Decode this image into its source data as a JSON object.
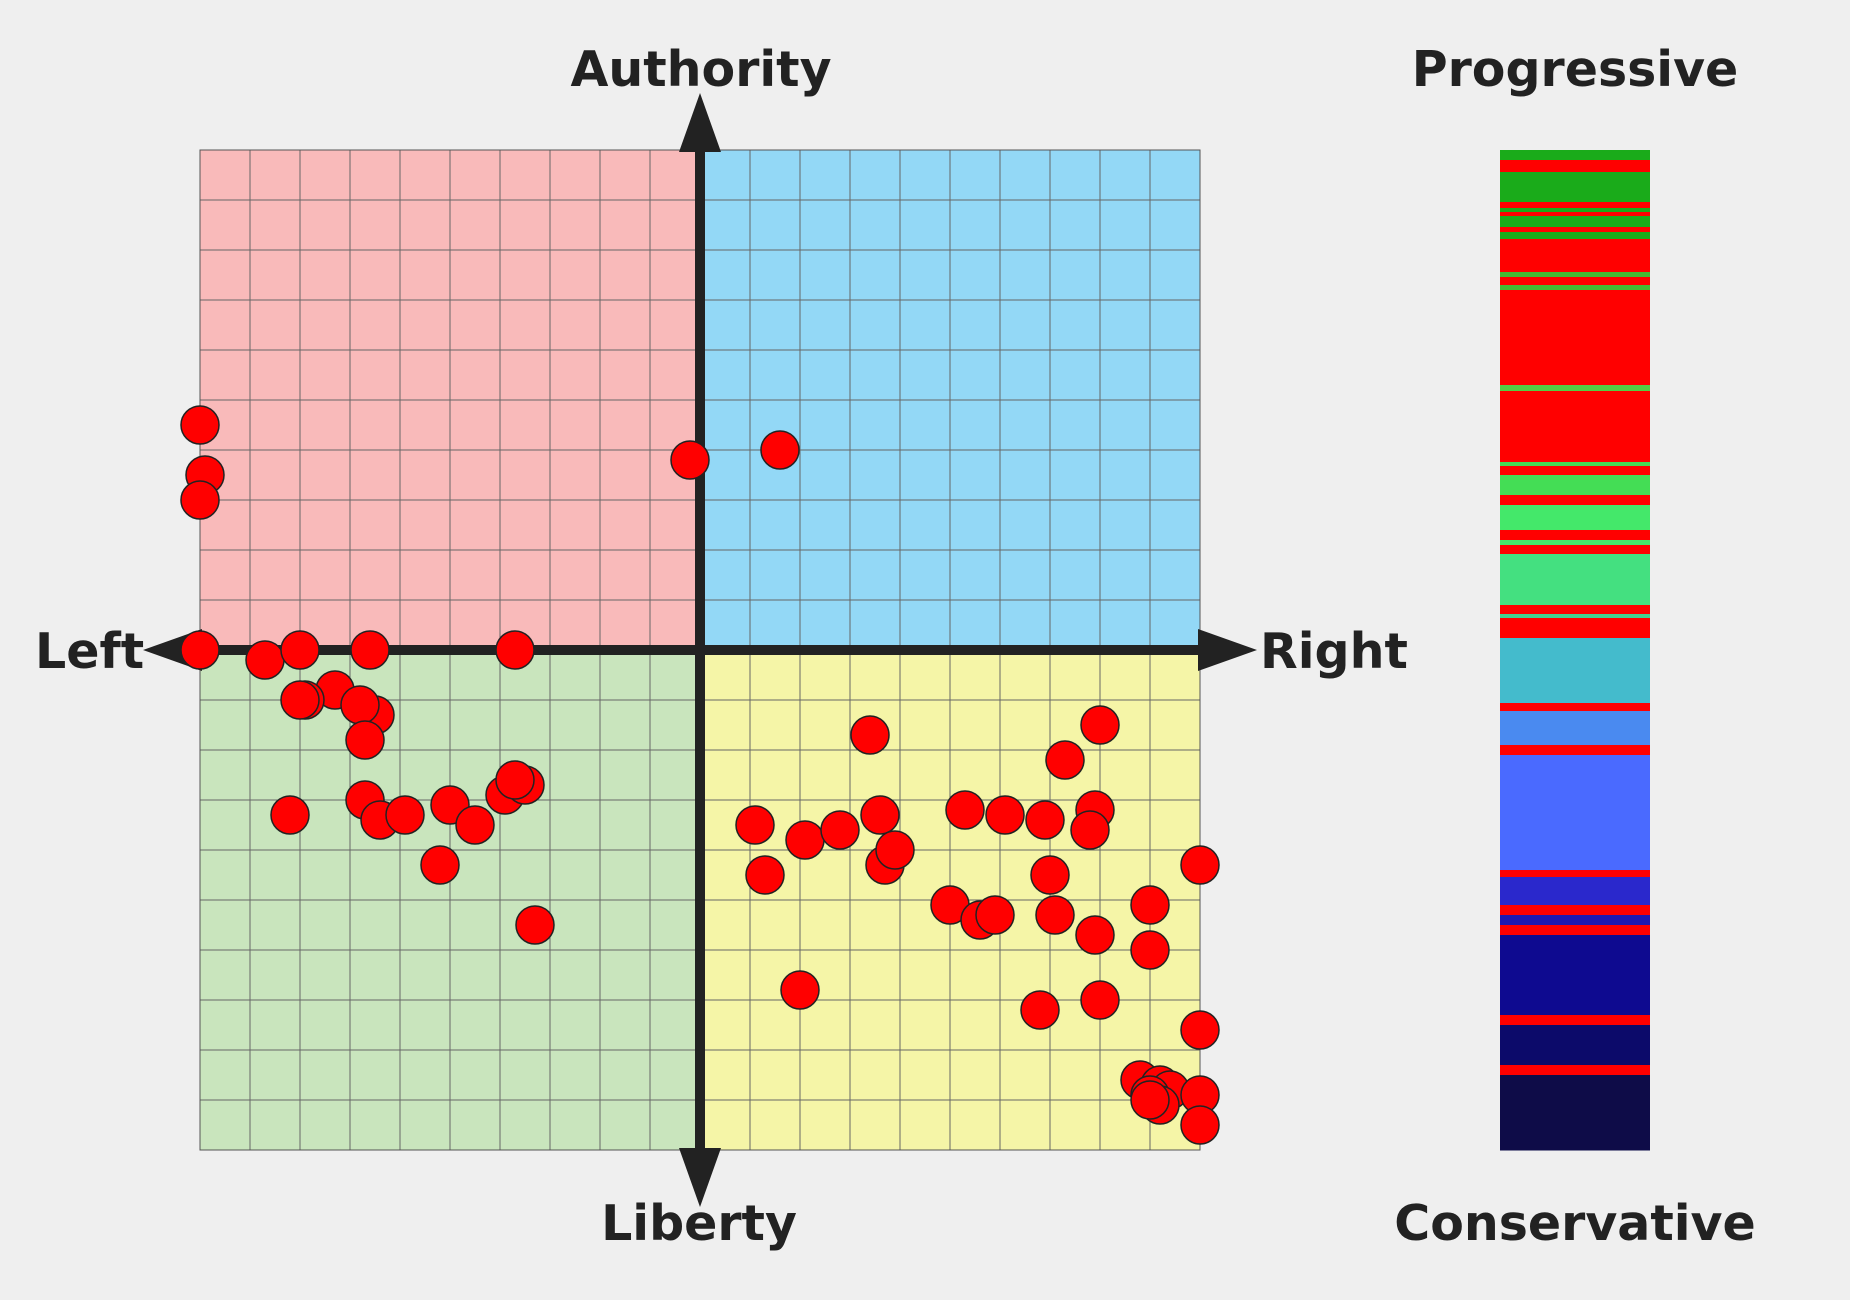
{
  "chart_data": {
    "type": "scatter",
    "axis_labels": {
      "top": "Authority",
      "bottom": "Liberty",
      "left": "Left",
      "right": "Right",
      "bar_top": "Progressive",
      "bar_bottom": "Conservative"
    },
    "xlim": [
      -10,
      10
    ],
    "ylim": [
      -10,
      10
    ],
    "grid": true,
    "quadrant_colors": {
      "top_left": "#f9baba",
      "top_right": "#93d8f6",
      "bottom_left": "#c9e5bd",
      "bottom_right": "#f5f5a7"
    },
    "points": [
      [
        -10.0,
        4.5
      ],
      [
        -9.9,
        3.5
      ],
      [
        -10.0,
        3.0
      ],
      [
        -0.2,
        3.8
      ],
      [
        1.6,
        4.0
      ],
      [
        -10.0,
        0.0
      ],
      [
        -8.7,
        -0.2
      ],
      [
        -8.0,
        0.0
      ],
      [
        -6.6,
        0.0
      ],
      [
        -3.7,
        0.0
      ],
      [
        -7.3,
        -0.8
      ],
      [
        -7.9,
        -1.0
      ],
      [
        -8.0,
        -1.0
      ],
      [
        -6.5,
        -1.3
      ],
      [
        -6.8,
        -1.1
      ],
      [
        -6.7,
        -1.8
      ],
      [
        -8.2,
        -3.3
      ],
      [
        -6.7,
        -3.0
      ],
      [
        -6.4,
        -3.4
      ],
      [
        -5.9,
        -3.3
      ],
      [
        -5.0,
        -3.1
      ],
      [
        -4.5,
        -3.5
      ],
      [
        -3.9,
        -2.9
      ],
      [
        -3.5,
        -2.7
      ],
      [
        -3.7,
        -2.6
      ],
      [
        -5.2,
        -4.3
      ],
      [
        -3.3,
        -5.5
      ],
      [
        1.1,
        -3.5
      ],
      [
        2.1,
        -3.8
      ],
      [
        2.8,
        -3.6
      ],
      [
        1.3,
        -4.5
      ],
      [
        3.4,
        -1.7
      ],
      [
        3.6,
        -3.3
      ],
      [
        3.7,
        -4.3
      ],
      [
        3.9,
        -4.0
      ],
      [
        5.3,
        -3.2
      ],
      [
        6.1,
        -3.3
      ],
      [
        6.9,
        -3.4
      ],
      [
        7.3,
        -2.2
      ],
      [
        8.0,
        -1.5
      ],
      [
        7.9,
        -3.2
      ],
      [
        7.8,
        -3.6
      ],
      [
        7.0,
        -4.5
      ],
      [
        10.0,
        -4.3
      ],
      [
        5.0,
        -5.1
      ],
      [
        5.6,
        -5.4
      ],
      [
        5.9,
        -5.3
      ],
      [
        7.1,
        -5.3
      ],
      [
        7.9,
        -5.7
      ],
      [
        9.0,
        -5.1
      ],
      [
        9.0,
        -6.0
      ],
      [
        2.0,
        -6.8
      ],
      [
        6.8,
        -7.2
      ],
      [
        8.0,
        -7.0
      ],
      [
        10.0,
        -7.6
      ],
      [
        8.8,
        -8.6
      ],
      [
        9.2,
        -8.7
      ],
      [
        9.4,
        -8.8
      ],
      [
        9.0,
        -8.9
      ],
      [
        9.2,
        -9.1
      ],
      [
        9.0,
        -9.0
      ],
      [
        10.0,
        -8.9
      ],
      [
        10.0,
        -9.5
      ]
    ],
    "point_color": "#ff0000",
    "color_bar": {
      "segments": [
        [
          "#1aab1a",
          0.0,
          0.01
        ],
        [
          "#ff0000",
          0.01,
          0.022
        ],
        [
          "#1aab1a",
          0.022,
          0.052
        ],
        [
          "#ff0000",
          0.052,
          0.058
        ],
        [
          "#1aab1a",
          0.058,
          0.062
        ],
        [
          "#ff0000",
          0.062,
          0.066
        ],
        [
          "#1aab1a",
          0.066,
          0.077
        ],
        [
          "#ff0000",
          0.077,
          0.082
        ],
        [
          "#1aab1a",
          0.082,
          0.089
        ],
        [
          "#ff0000",
          0.089,
          0.122
        ],
        [
          "#44bb33",
          0.122,
          0.127
        ],
        [
          "#ff0000",
          0.127,
          0.135
        ],
        [
          "#44bb33",
          0.135,
          0.14
        ],
        [
          "#ff0000",
          0.14,
          0.235
        ],
        [
          "#55cc44",
          0.235,
          0.241
        ],
        [
          "#ff0000",
          0.241,
          0.312
        ],
        [
          "#44dd55",
          0.312,
          0.316
        ],
        [
          "#ff0000",
          0.316,
          0.325
        ],
        [
          "#44dd55",
          0.325,
          0.345
        ],
        [
          "#ff0000",
          0.345,
          0.355
        ],
        [
          "#44e86a",
          0.355,
          0.38
        ],
        [
          "#ff0000",
          0.38,
          0.39
        ],
        [
          "#44e86a",
          0.39,
          0.395
        ],
        [
          "#ff0000",
          0.395,
          0.404
        ],
        [
          "#44e080",
          0.404,
          0.455
        ],
        [
          "#ff0000",
          0.455,
          0.464
        ],
        [
          "#44d090",
          0.464,
          0.468
        ],
        [
          "#ff0000",
          0.468,
          0.488
        ],
        [
          "#44bbcc",
          0.488,
          0.553
        ],
        [
          "#ff0000",
          0.553,
          0.561
        ],
        [
          "#4a8af0",
          0.561,
          0.595
        ],
        [
          "#ff0000",
          0.595,
          0.605
        ],
        [
          "#4a6aff",
          0.605,
          0.72
        ],
        [
          "#ff0000",
          0.72,
          0.727
        ],
        [
          "#2a28cc",
          0.727,
          0.755
        ],
        [
          "#ff0000",
          0.755,
          0.765
        ],
        [
          "#2018b0",
          0.765,
          0.775
        ],
        [
          "#ff0000",
          0.775,
          0.785
        ],
        [
          "#0e0a90",
          0.785,
          0.865
        ],
        [
          "#ff0000",
          0.865,
          0.875
        ],
        [
          "#0c0a6a",
          0.875,
          0.915
        ],
        [
          "#ff0000",
          0.915,
          0.925
        ],
        [
          "#0e0c48",
          0.925,
          1.0
        ]
      ]
    }
  }
}
